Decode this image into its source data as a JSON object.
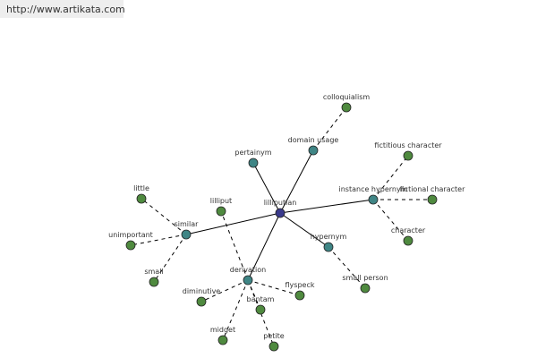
{
  "watermark": "http://www.artikata.com",
  "nodes": [
    {
      "label": "lilliputian"
    },
    {
      "label": "domain usage"
    },
    {
      "label": "colloquialism"
    },
    {
      "label": "pertainym"
    },
    {
      "label": "instance hypernym"
    },
    {
      "label": "fictitious character"
    },
    {
      "label": "fictional character"
    },
    {
      "label": "character"
    },
    {
      "label": "hypernym"
    },
    {
      "label": "small person"
    },
    {
      "label": "similar"
    },
    {
      "label": "little"
    },
    {
      "label": "unimportant"
    },
    {
      "label": "small"
    },
    {
      "label": "lilliput"
    },
    {
      "label": "derivation"
    },
    {
      "label": "diminutive"
    },
    {
      "label": "flyspeck"
    },
    {
      "label": "bantam"
    },
    {
      "label": "midget"
    },
    {
      "label": "petite"
    }
  ]
}
